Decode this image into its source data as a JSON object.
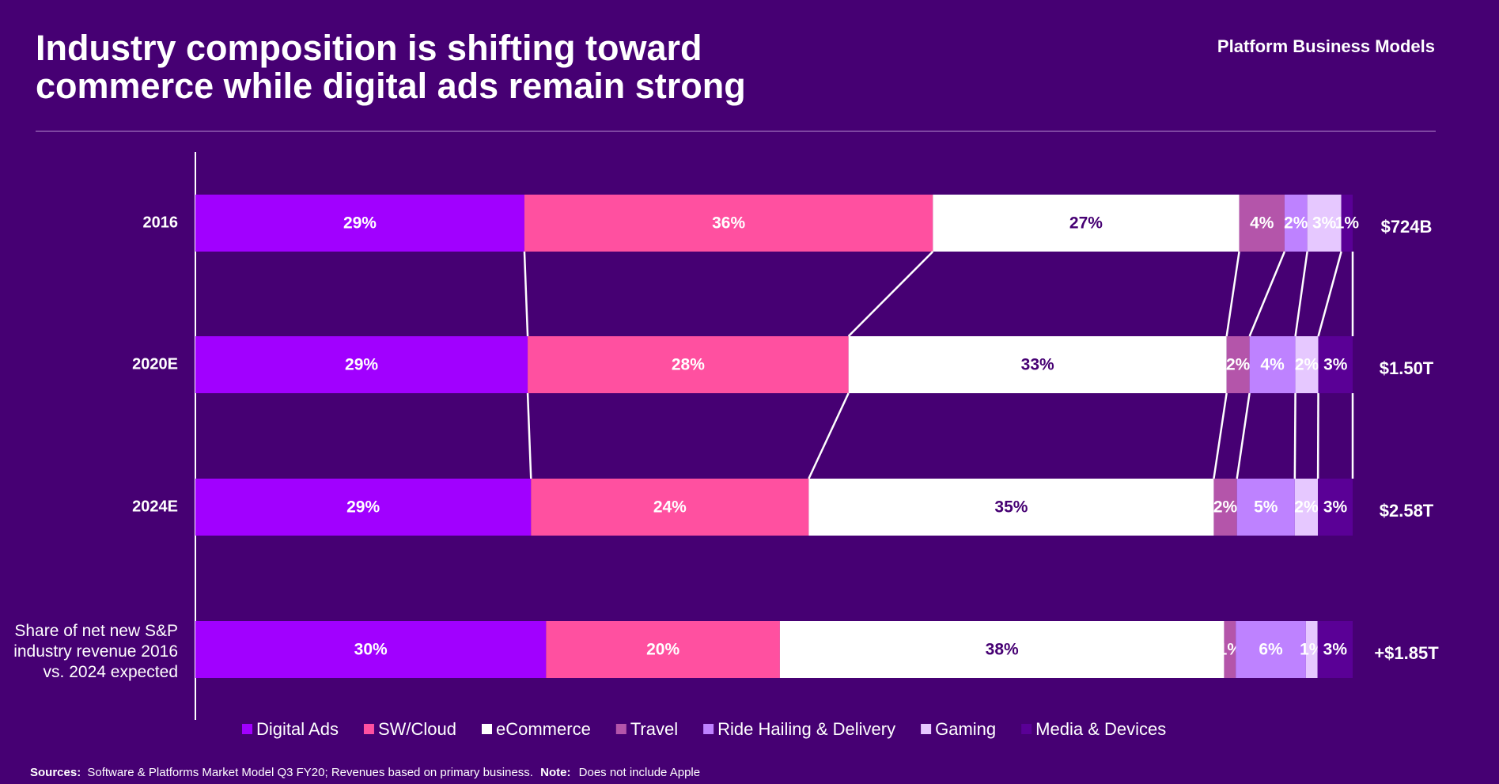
{
  "chart_data": {
    "type": "bar",
    "orientation": "horizontal",
    "stacked": "percent",
    "title": "Industry composition is shifting toward commerce while digital ads remain strong",
    "header_right": "Platform Business Models",
    "categories": [
      "2016",
      "2020E",
      "2024E",
      "Share of net new S&P industry revenue 2016 vs. 2024 expected"
    ],
    "totals": [
      "$724B",
      "$1.50T",
      "$2.58T",
      "+$1.85T"
    ],
    "series": [
      {
        "name": "Digital Ads",
        "color": "#a100ff",
        "label_color": "#ffffff",
        "values": [
          29,
          29,
          29,
          30
        ],
        "value_labels": [
          "29%",
          "29%",
          "29%",
          "30%"
        ]
      },
      {
        "name": "SW/Cloud",
        "color": "#ff50a0",
        "label_color": "#ffffff",
        "values": [
          36,
          28,
          24,
          20
        ],
        "value_labels": [
          "36%",
          "28%",
          "24%",
          "20%"
        ]
      },
      {
        "name": "eCommerce",
        "color": "#ffffff",
        "label_color": "#460073",
        "values": [
          27,
          33,
          35,
          38
        ],
        "value_labels": [
          "27%",
          "33%",
          "35%",
          "38%"
        ]
      },
      {
        "name": "Travel",
        "color": "#b455aa",
        "label_color": "#ffffff",
        "values": [
          4,
          2,
          2,
          1
        ],
        "value_labels": [
          "4%",
          "2%",
          "2%",
          "1%"
        ]
      },
      {
        "name": "Ride Hailing & Delivery",
        "color": "#be82ff",
        "label_color": "#ffffff",
        "values": [
          2,
          4,
          5,
          6
        ],
        "value_labels": [
          "2%",
          "4%",
          "5%",
          "6%"
        ]
      },
      {
        "name": "Gaming",
        "color": "#e6c8ff",
        "label_color": "#ffffff",
        "values": [
          3,
          2,
          2,
          1
        ],
        "value_labels": [
          "3%",
          "2%",
          "2%",
          "1%"
        ]
      },
      {
        "name": "Media & Devices",
        "color": "#5a0096",
        "label_color": "#ffffff",
        "values": [
          1,
          3,
          3,
          3
        ],
        "value_labels": [
          "1%",
          "3%",
          "3%",
          "3%"
        ]
      }
    ],
    "connected_bars": 3,
    "footer": {
      "sources_label": "Sources:",
      "sources_text": "Software & Platforms Market Model Q3 FY20; Revenues based on primary business.",
      "note_label": "Note:",
      "note_text": "Does not include Apple"
    }
  }
}
